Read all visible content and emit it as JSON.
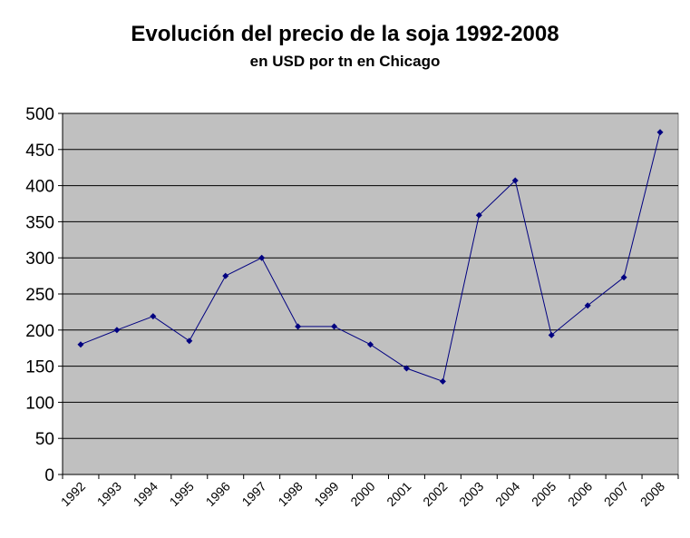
{
  "chart_data": {
    "type": "line",
    "title": "Evolución del precio de la soja 1992-2008",
    "subtitle": "en USD por tn en Chicago",
    "xlabel": "",
    "ylabel": "",
    "categories": [
      "1992",
      "1993",
      "1994",
      "1995",
      "1996",
      "1997",
      "1998",
      "1999",
      "2000",
      "2001",
      "2002",
      "2003",
      "2004",
      "2005",
      "2006",
      "2007",
      "2008"
    ],
    "values": [
      180,
      200,
      219,
      185,
      275,
      300,
      205,
      205,
      180,
      147,
      129,
      359,
      407,
      193,
      234,
      273,
      474
    ],
    "ylim": [
      0,
      500
    ],
    "yticks": [
      0,
      50,
      100,
      150,
      200,
      250,
      300,
      350,
      400,
      450,
      500
    ],
    "grid": true,
    "legend": "none",
    "colors": {
      "plot_background": "#c0c0c0",
      "line": "#000080",
      "grid": "#000000"
    }
  }
}
